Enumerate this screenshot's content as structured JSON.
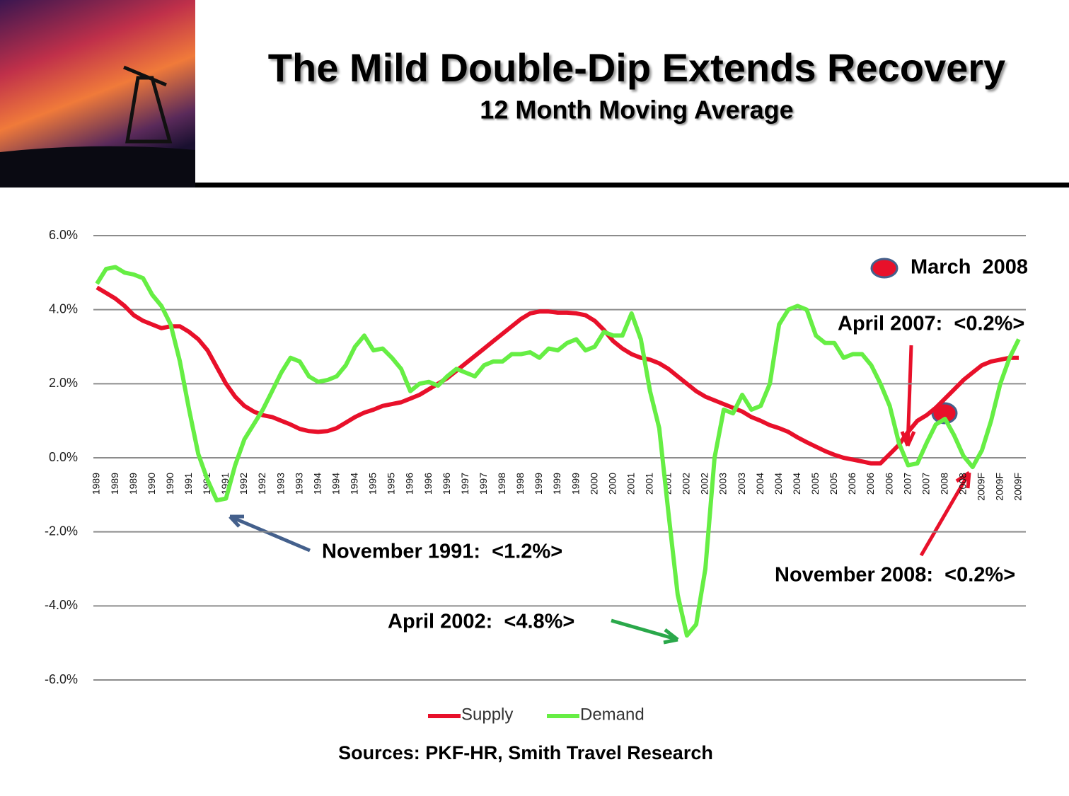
{
  "chart_data": {
    "type": "line",
    "title": "The Mild Double-Dip Extends Recovery",
    "subtitle": "12 Month Moving Average",
    "source": "Sources: PKF-HR, Smith Travel Research",
    "annotations": [
      "March  2008",
      "April 2007:  <0.2%>",
      "November 1991:  <1.2%>",
      "April 2002:  <4.8%>",
      "November 2008:  <0.2%>"
    ],
    "categories": [
      "1989",
      null,
      "1989",
      null,
      "1989",
      null,
      "1990",
      null,
      "1990",
      null,
      "1991",
      null,
      "1991",
      null,
      "1991",
      null,
      "1992",
      null,
      "1992",
      null,
      "1993",
      null,
      "1993",
      null,
      "1994",
      null,
      "1994",
      null,
      "1994",
      null,
      "1995",
      null,
      "1995",
      null,
      "1996",
      null,
      "1996",
      null,
      "1996",
      null,
      "1997",
      null,
      "1997",
      null,
      "1998",
      null,
      "1998",
      null,
      "1999",
      null,
      "1999",
      null,
      "1999",
      null,
      "2000",
      null,
      "2000",
      null,
      "2001",
      null,
      "2001",
      null,
      "2001",
      null,
      "2002",
      null,
      "2002",
      null,
      "2003",
      null,
      "2003",
      null,
      "2004",
      null,
      "2004",
      null,
      "2004",
      null,
      "2005",
      null,
      "2005",
      null,
      "2006",
      null,
      "2006",
      null,
      "2006",
      null,
      "2007",
      null,
      "2007",
      null,
      "2008",
      null,
      "2008",
      null,
      "2009F",
      null,
      "2009F",
      null,
      "2009F"
    ],
    "series": [
      {
        "name": "Supply",
        "color": "#e8102a",
        "values": [
          4.6,
          4.45,
          4.3,
          4.1,
          3.85,
          3.7,
          3.6,
          3.5,
          3.55,
          3.55,
          3.4,
          3.2,
          2.9,
          2.45,
          2.0,
          1.65,
          1.4,
          1.25,
          1.15,
          1.1,
          1.0,
          0.9,
          0.78,
          0.72,
          0.7,
          0.72,
          0.8,
          0.95,
          1.1,
          1.22,
          1.3,
          1.4,
          1.45,
          1.5,
          1.6,
          1.7,
          1.85,
          2.0,
          2.15,
          2.35,
          2.55,
          2.75,
          2.95,
          3.15,
          3.35,
          3.55,
          3.75,
          3.9,
          3.95,
          3.95,
          3.92,
          3.92,
          3.9,
          3.85,
          3.7,
          3.45,
          3.15,
          2.95,
          2.8,
          2.7,
          2.65,
          2.55,
          2.4,
          2.2,
          2.0,
          1.8,
          1.65,
          1.55,
          1.45,
          1.35,
          1.25,
          1.1,
          1.0,
          0.88,
          0.8,
          0.7,
          0.55,
          0.42,
          0.3,
          0.18,
          0.08,
          0.0,
          -0.05,
          -0.1,
          -0.15,
          -0.15,
          0.1,
          0.35,
          0.7,
          1.0,
          1.15,
          1.35,
          1.6,
          1.85,
          2.1,
          2.3,
          2.5,
          2.6,
          2.65,
          2.7,
          2.7
        ]
      },
      {
        "name": "Demand",
        "color": "#66ee44",
        "values": [
          4.7,
          5.1,
          5.15,
          5.0,
          4.95,
          4.85,
          4.4,
          4.1,
          3.6,
          2.6,
          1.3,
          0.1,
          -0.6,
          -1.15,
          -1.1,
          -0.2,
          0.5,
          0.9,
          1.3,
          1.8,
          2.3,
          2.7,
          2.6,
          2.2,
          2.05,
          2.1,
          2.2,
          2.5,
          3.0,
          3.3,
          2.9,
          2.95,
          2.7,
          2.4,
          1.8,
          2.0,
          2.05,
          1.95,
          2.2,
          2.4,
          2.3,
          2.2,
          2.5,
          2.6,
          2.6,
          2.8,
          2.8,
          2.85,
          2.7,
          2.95,
          2.9,
          3.1,
          3.2,
          2.9,
          3.0,
          3.4,
          3.3,
          3.3,
          3.9,
          3.2,
          1.8,
          0.8,
          -1.5,
          -3.7,
          -4.8,
          -4.5,
          -3.0,
          0.0,
          1.3,
          1.2,
          1.7,
          1.3,
          1.4,
          2.0,
          3.6,
          4.0,
          4.1,
          4.0,
          3.3,
          3.1,
          3.1,
          2.7,
          2.8,
          2.8,
          2.5,
          2.0,
          1.4,
          0.4,
          -0.2,
          -0.15,
          0.4,
          0.9,
          1.05,
          0.6,
          0.05,
          -0.25,
          0.2,
          1.0,
          2.0,
          2.7,
          3.2
        ]
      }
    ],
    "ylim": [
      -6,
      6
    ],
    "yticks": [
      {
        "value": -6,
        "label": "-6.0%"
      },
      {
        "value": -4,
        "label": "-4.0%"
      },
      {
        "value": -2,
        "label": "-2.0%"
      },
      {
        "value": 0,
        "label": "0.0%"
      },
      {
        "value": 2,
        "label": "2.0%"
      },
      {
        "value": 4,
        "label": "4.0%"
      },
      {
        "value": 6,
        "label": "6.0%"
      }
    ],
    "grid": true,
    "legend": "bottom"
  }
}
